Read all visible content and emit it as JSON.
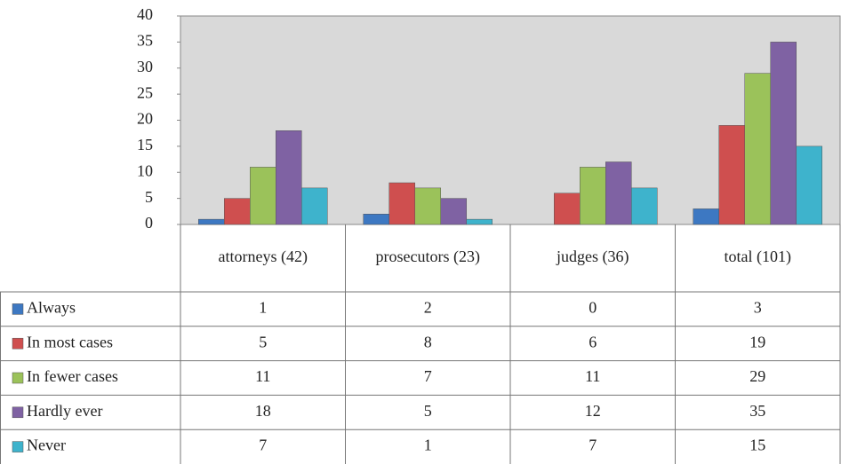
{
  "chart_data": {
    "type": "bar",
    "categories": [
      "attorneys (42)",
      "prosecutors (23)",
      "judges (36)",
      "total (101)"
    ],
    "series": [
      {
        "name": "Always",
        "color": "#3d78c2",
        "values": [
          1,
          2,
          0,
          3
        ]
      },
      {
        "name": "In most cases",
        "color": "#cf4f4f",
        "values": [
          5,
          8,
          6,
          19
        ]
      },
      {
        "name": "In fewer cases",
        "color": "#9bc25a",
        "values": [
          11,
          7,
          11,
          29
        ]
      },
      {
        "name": "Hardly ever",
        "color": "#7f62a3",
        "values": [
          18,
          5,
          12,
          35
        ]
      },
      {
        "name": "Never",
        "color": "#3eb3cc",
        "values": [
          7,
          1,
          7,
          15
        ]
      }
    ],
    "ylim": [
      0,
      40
    ],
    "yticks": [
      0,
      5,
      10,
      15,
      20,
      25,
      30,
      35,
      40
    ],
    "grid": false,
    "data_table": true
  }
}
